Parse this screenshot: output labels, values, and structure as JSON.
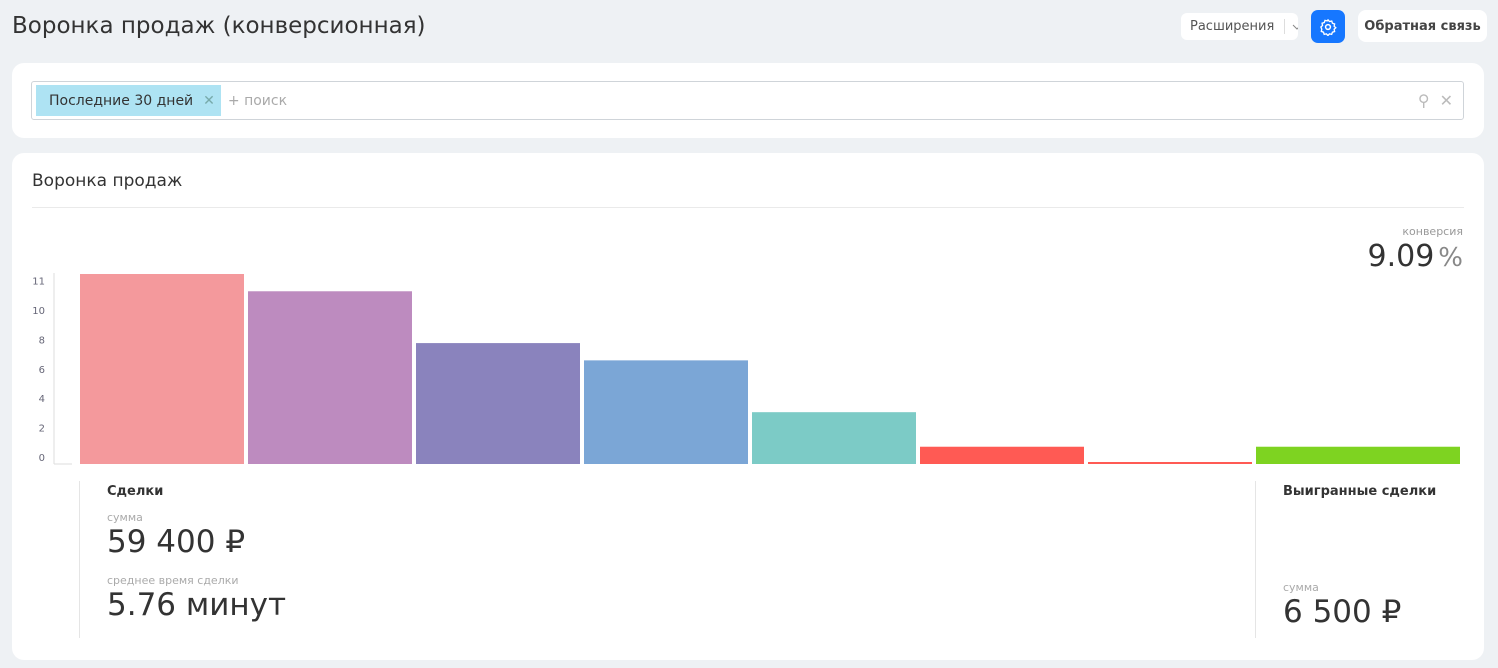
{
  "header": {
    "title": "Воронка продаж (конверсионная)",
    "extensions_label": "Расширения",
    "feedback_label": "Обратная связь"
  },
  "filter": {
    "chip": "Последние 30 дней",
    "placeholder": "+ поиск"
  },
  "panel": {
    "title": "Воронка продаж",
    "conversion_label": "конверсия",
    "conversion_value": "9.09",
    "conversion_unit": "%"
  },
  "chart_data": {
    "type": "bar",
    "yticks": [
      "0",
      "2",
      "4",
      "6",
      "8",
      "10",
      "11"
    ],
    "ylim": [
      0,
      11
    ],
    "values": [
      11,
      10,
      7,
      6,
      3,
      1,
      0,
      1
    ],
    "colors": [
      "#f4999c",
      "#bd8bbf",
      "#8a83bd",
      "#7ba6d6",
      "#7ccbc6",
      "#ff5a54",
      "#ff5a54",
      "#7ed321"
    ]
  },
  "deals": {
    "title": "Сделки",
    "sum_label": "сумма",
    "sum_value": "59 400 ₽",
    "avg_label": "среднее время сделки",
    "avg_value": "5.76 минут"
  },
  "won": {
    "title": "Выигранные сделки",
    "sum_label": "сумма",
    "sum_value": "6 500 ₽"
  }
}
